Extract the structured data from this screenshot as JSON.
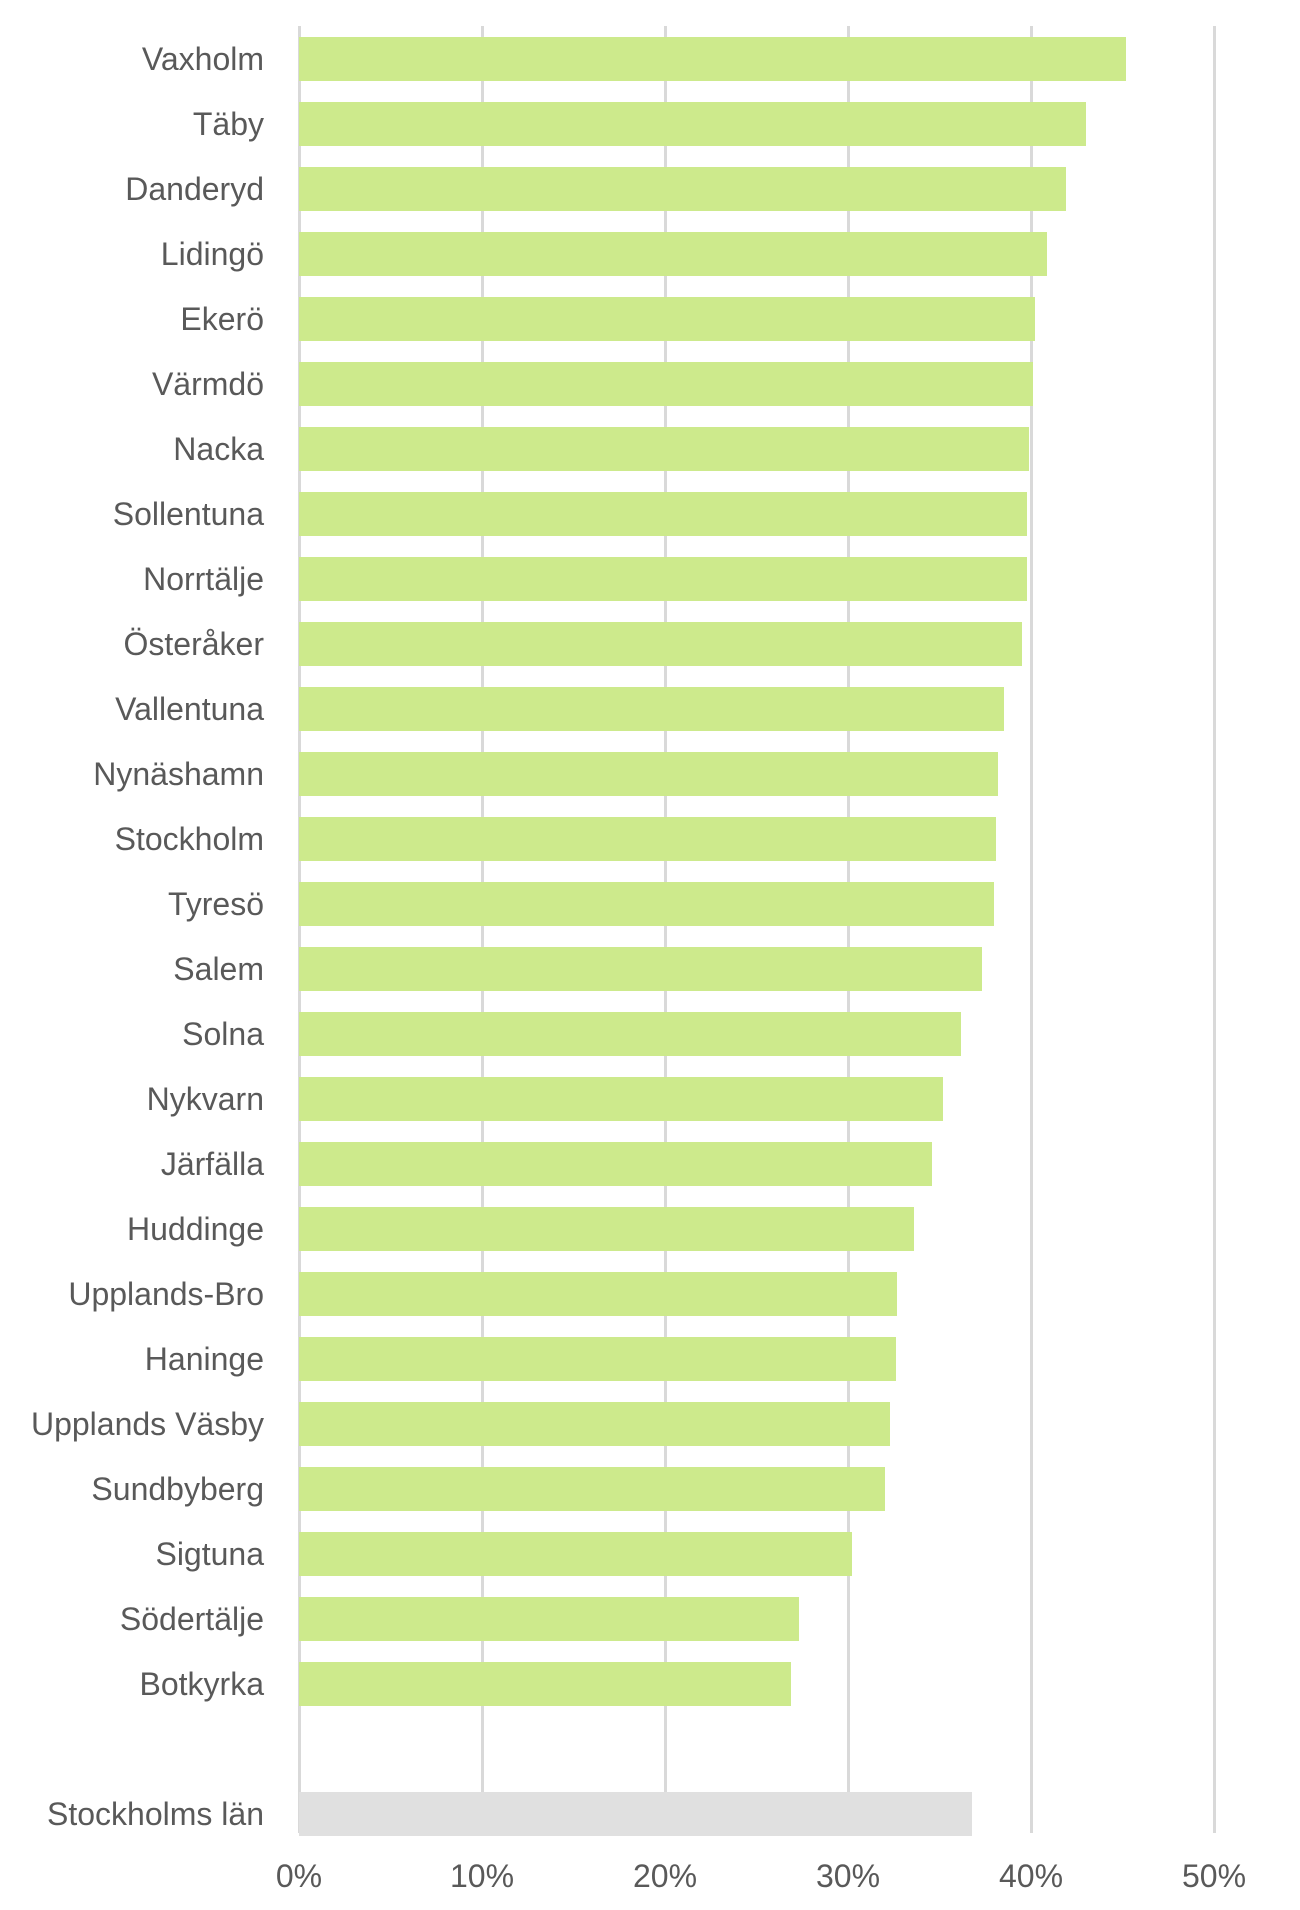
{
  "chart_data": {
    "type": "bar",
    "orientation": "horizontal",
    "title": "",
    "xlabel": "",
    "ylabel": "",
    "categories": [
      "Vaxholm",
      "Täby",
      "Danderyd",
      "Lidingö",
      "Ekerö",
      "Värmdö",
      "Nacka",
      "Sollentuna",
      "Norrtälje",
      "Österåker",
      "Vallentuna",
      "Nynäshamn",
      "Stockholm",
      "Tyresö",
      "Salem",
      "Solna",
      "Nykvarn",
      "Järfälla",
      "Huddinge",
      "Upplands-Bro",
      "Haninge",
      "Upplands Väsby",
      "Sundbyberg",
      "Sigtuna",
      "Södertälje",
      "Botkyrka",
      "Stockholms län"
    ],
    "values": [
      45.2,
      43.0,
      41.9,
      40.9,
      40.2,
      40.1,
      39.9,
      39.8,
      39.8,
      39.5,
      38.5,
      38.2,
      38.1,
      38.0,
      37.3,
      36.2,
      35.2,
      34.6,
      33.6,
      32.7,
      32.6,
      32.3,
      32.0,
      30.2,
      27.3,
      26.9,
      36.8
    ],
    "unit": "%",
    "xlim": [
      0,
      50
    ],
    "x_tick_labels": [
      "0%",
      "10%",
      "20%",
      "30%",
      "40%",
      "50%"
    ],
    "x_tick_values": [
      0,
      10,
      20,
      30,
      40,
      50
    ],
    "grid": "vertical",
    "legend": "none",
    "highlight_index": 26,
    "separator_gap_before_index": 26,
    "colors": {
      "bar": "#cdea8c",
      "highlight_bar": "#e0e0e0",
      "gridline": "#d9d9d9",
      "axis_text": "#595959",
      "background": "#ffffff"
    }
  }
}
